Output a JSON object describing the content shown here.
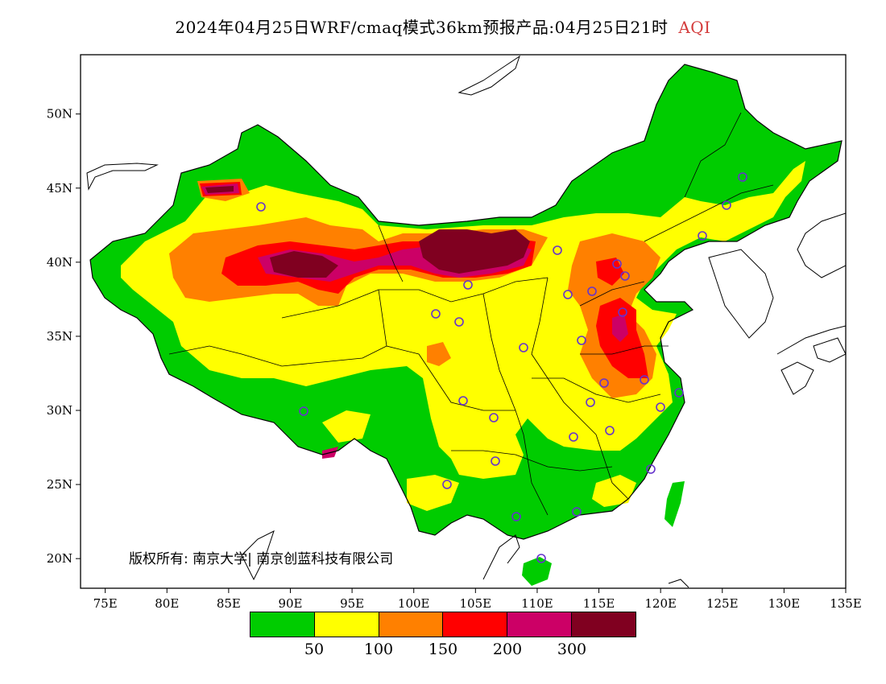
{
  "title": {
    "main": "2024年04月25日WRF/cmaq模式36km预报产品:04月25日21时",
    "variable": "AQI"
  },
  "axes": {
    "lat_labels": [
      "50N",
      "45N",
      "40N",
      "35N",
      "30N",
      "25N",
      "20N"
    ],
    "lon_labels": [
      "75E",
      "80E",
      "85E",
      "90E",
      "95E",
      "100E",
      "105E",
      "110E",
      "115E",
      "120E",
      "125E",
      "130E",
      "135E"
    ],
    "lon_range": [
      73,
      135
    ],
    "lat_range": [
      18,
      54
    ]
  },
  "legend": {
    "bins": [
      {
        "color": "#00cc00"
      },
      {
        "color": "#ffff00"
      },
      {
        "color": "#ff8000"
      },
      {
        "color": "#ff0000"
      },
      {
        "color": "#cc0066"
      },
      {
        "color": "#800020"
      }
    ],
    "thresholds": [
      "50",
      "100",
      "150",
      "200",
      "300"
    ]
  },
  "copyright": "版权所有: 南京大学| 南京创蓝科技有限公司"
}
